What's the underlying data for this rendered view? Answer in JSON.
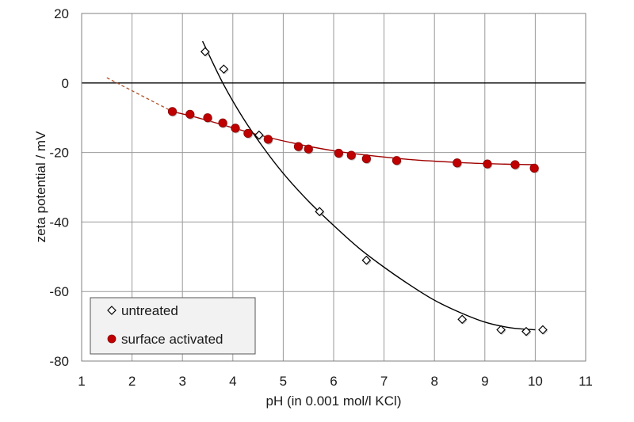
{
  "chart_data": {
    "type": "scatter",
    "title": "",
    "xlabel": "pH (in 0.001 mol/l KCl)",
    "ylabel": "zeta potential / mV",
    "xlim": [
      1,
      11
    ],
    "ylim": [
      -80,
      20
    ],
    "xticks": [
      1,
      2,
      3,
      4,
      5,
      6,
      7,
      8,
      9,
      10,
      11
    ],
    "yticks": [
      20,
      0,
      -20,
      -40,
      -60,
      -80
    ],
    "grid": true,
    "legend_position": "bottom-left",
    "series": [
      {
        "name": "untreated",
        "marker": "diamond",
        "color": "#ffffff",
        "edge_color": "#000000",
        "line_color": "#000000",
        "x": [
          3.45,
          3.82,
          4.52,
          5.72,
          6.65,
          8.55,
          9.32,
          9.82,
          10.15
        ],
        "y": [
          9,
          4,
          -15,
          -37,
          -51,
          -68,
          -71,
          -71.5,
          -71
        ],
        "fit_x": [
          3.4,
          3.8,
          4.2,
          4.6,
          5.0,
          5.5,
          6.0,
          6.5,
          7.0,
          7.5,
          8.0,
          8.5,
          9.0,
          9.5,
          10.0
        ],
        "fit_y": [
          12,
          0,
          -10,
          -18.5,
          -26,
          -34,
          -41,
          -47.5,
          -53,
          -58,
          -62.5,
          -66,
          -68.8,
          -70.4,
          -71
        ]
      },
      {
        "name": "surface activated",
        "marker": "circle",
        "color": "#c00000",
        "line_color": "#a00000",
        "x": [
          2.8,
          3.15,
          3.5,
          3.8,
          4.05,
          4.3,
          4.7,
          5.3,
          5.5,
          6.1,
          6.35,
          6.65,
          7.25,
          8.45,
          9.05,
          9.6,
          9.98
        ],
        "y": [
          -8.2,
          -9,
          -10,
          -11.5,
          -13,
          -14.5,
          -16.2,
          -18.3,
          -19,
          -20.2,
          -20.8,
          -21.8,
          -22.3,
          -23,
          -23.3,
          -23.5,
          -24.5
        ],
        "fit_x": [
          2.8,
          3.2,
          3.6,
          4.0,
          4.4,
          4.8,
          5.2,
          5.6,
          6.0,
          6.5,
          7.0,
          7.5,
          8.0,
          8.5,
          9.0,
          9.5,
          10.0
        ],
        "fit_y": [
          -8.2,
          -9.6,
          -11.2,
          -12.9,
          -14.5,
          -16,
          -17.3,
          -18.5,
          -19.5,
          -20.5,
          -21.3,
          -22,
          -22.5,
          -22.9,
          -23.2,
          -23.4,
          -23.5
        ],
        "extrapolation_x": [
          1.5,
          2.8
        ],
        "extrapolation_y": [
          1.5,
          -8.2
        ]
      }
    ]
  }
}
